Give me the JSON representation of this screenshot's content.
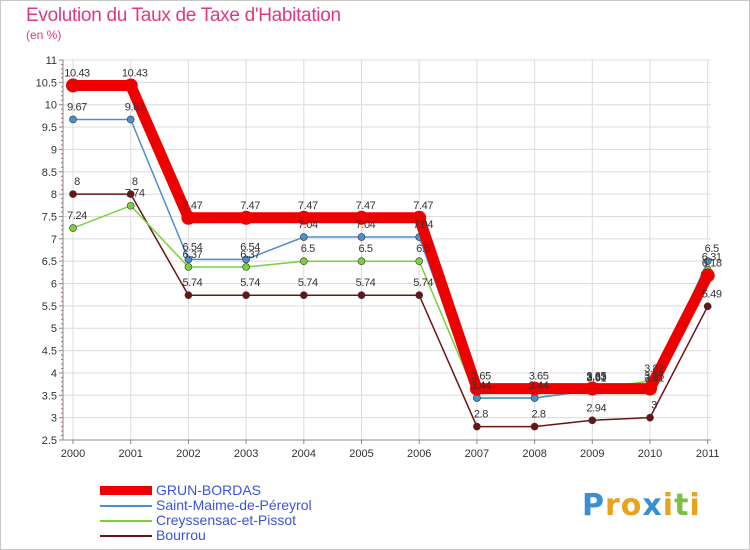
{
  "chart_data": {
    "type": "line",
    "title": "Evolution du Taux de Taxe d'Habitation",
    "subtitle": "(en %)",
    "xlabel": "",
    "ylabel": "",
    "categories": [
      "2000",
      "2001",
      "2002",
      "2003",
      "2004",
      "2005",
      "2006",
      "2007",
      "2008",
      "2009",
      "2010",
      "2011"
    ],
    "ylim": [
      2.5,
      11
    ],
    "yticks": [
      2.5,
      3,
      3.5,
      4,
      4.5,
      5,
      5.5,
      6,
      6.5,
      7,
      7.5,
      8,
      8.5,
      9,
      9.5,
      10,
      10.5,
      11
    ],
    "ytick_labels": [
      "2.5",
      "3",
      "3.5",
      "4",
      "4.5",
      "5",
      "5.5",
      "6",
      "6.5",
      "7",
      "7.5",
      "8",
      "8.5",
      "9",
      "9.5",
      "10",
      "10.5",
      "11"
    ],
    "grid": true,
    "legend_position": "bottom-left",
    "series": [
      {
        "name": "GRUN-BORDAS",
        "color": "#ee0000",
        "values": [
          10.43,
          10.43,
          7.47,
          7.47,
          7.47,
          7.47,
          7.47,
          3.65,
          3.65,
          3.65,
          3.65,
          6.18
        ],
        "labels": [
          "10.43",
          "10.43",
          "7.47",
          "7.47",
          "7.47",
          "7.47",
          "7.47",
          "3.65",
          "3.65",
          "3.65",
          "3.65",
          "6.18"
        ]
      },
      {
        "name": "Saint-Maime-de-Péreyrol",
        "color": "#4a90d0",
        "values": [
          9.67,
          9.67,
          6.54,
          6.54,
          7.04,
          7.04,
          7.04,
          3.44,
          3.44,
          3.61,
          3.61,
          6.5
        ],
        "labels": [
          "9.67",
          "9.67",
          "6.54",
          "6.54",
          "7.04",
          "7.04",
          "7.04",
          "3.44",
          "3.44",
          "3.61",
          "3.61",
          "6.5"
        ]
      },
      {
        "name": "Creyssensac-et-Pissot",
        "color": "#7ad03a",
        "values": [
          7.24,
          7.74,
          6.37,
          6.37,
          6.5,
          6.5,
          6.5,
          3.44,
          3.44,
          3.63,
          3.82,
          6.31
        ],
        "labels": [
          "7.24",
          "7.74",
          "6.37",
          "6.37",
          "6.5",
          "6.5",
          "6.5",
          "3.44",
          "3.44",
          "3.63",
          "3.82",
          "6.31"
        ]
      },
      {
        "name": "Bourrou",
        "color": "#6b1414",
        "values": [
          8.0,
          8.0,
          5.74,
          5.74,
          5.74,
          5.74,
          5.74,
          2.8,
          2.8,
          2.94,
          3.0,
          5.49
        ],
        "labels": [
          "8",
          "8",
          "5.74",
          "5.74",
          "5.74",
          "5.74",
          "5.74",
          "2.8",
          "2.8",
          "2.94",
          "3",
          "5.49"
        ]
      }
    ]
  },
  "brand": {
    "name": "Proxiti",
    "letters": [
      "P",
      "r",
      "o",
      "x",
      "i",
      "t",
      "i"
    ],
    "colors": [
      "#3a8fd0",
      "#e8a21c",
      "#e8a21c",
      "#3a8fd0",
      "#e8a21c",
      "#7cc242",
      "#e8a21c"
    ]
  }
}
